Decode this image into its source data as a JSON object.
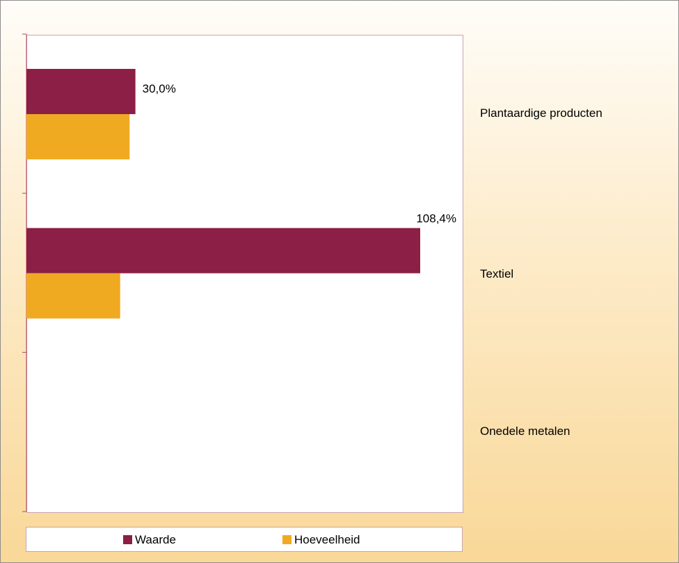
{
  "chart_data": {
    "type": "bar",
    "orientation": "horizontal",
    "title": "",
    "xlabel": "",
    "ylabel": "",
    "categories": [
      "Plantaardige producten",
      "Textiel",
      "Onedele metalen"
    ],
    "series": [
      {
        "name": "Waarde",
        "color": "#8b1f45",
        "values": [
          30.0,
          108.4,
          null
        ],
        "data_labels": [
          "30,0%",
          "108,4%",
          ""
        ]
      },
      {
        "name": "Hoeveelheid",
        "color": "#f0aa22",
        "values": [
          28.4,
          25.8,
          null
        ],
        "data_labels": [
          "",
          "",
          ""
        ]
      }
    ],
    "xlim": [
      0,
      120
    ],
    "grid": false,
    "axis_tick_labels_visible": false,
    "category_labels_side": "right",
    "legend_position": "bottom"
  }
}
